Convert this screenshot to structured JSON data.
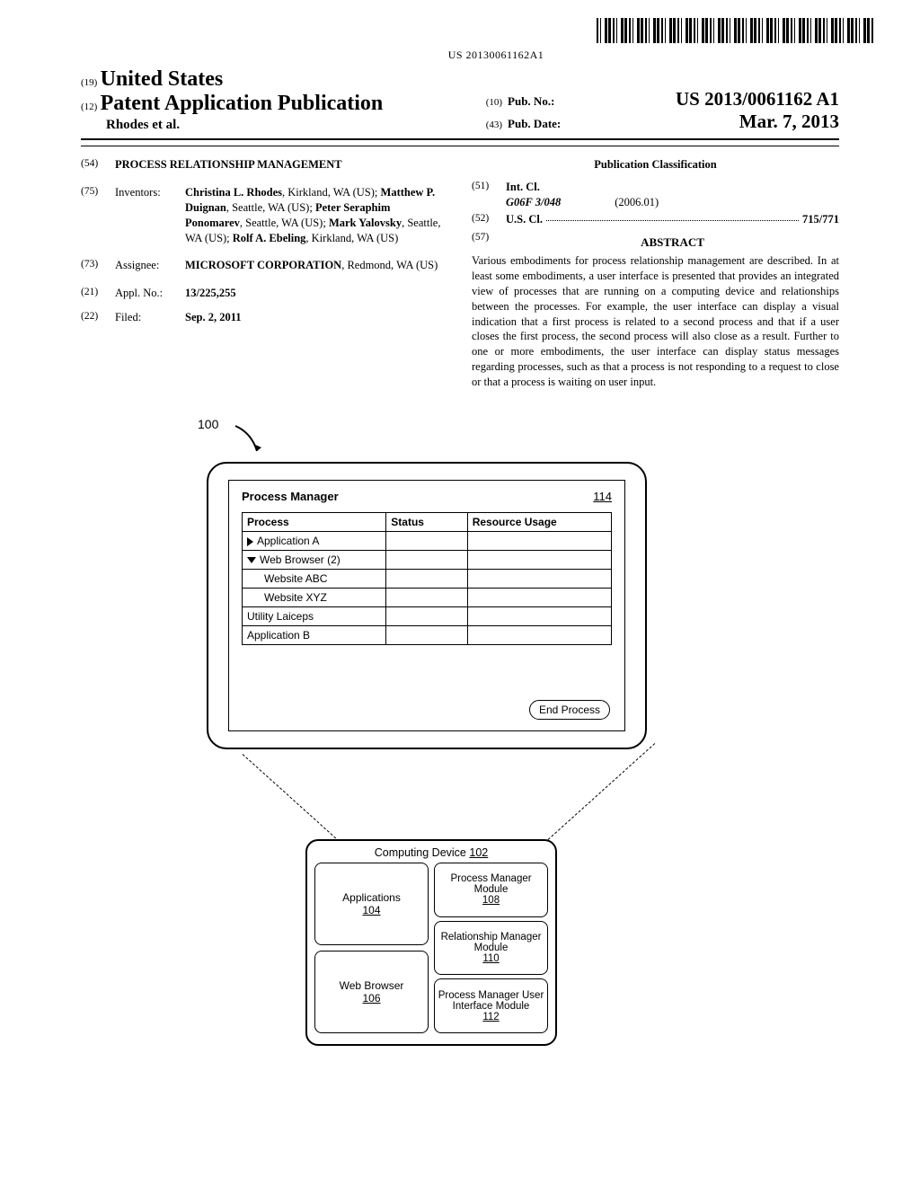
{
  "barcode_number": "US 20130061162A1",
  "header": {
    "num19": "(19)",
    "country": "United States",
    "num12": "(12)",
    "doc_type": "Patent Application Publication",
    "authors": "Rhodes et al.",
    "num10": "(10)",
    "pubno_label": "Pub. No.:",
    "pubno_value": "US 2013/0061162 A1",
    "num43": "(43)",
    "pubdate_label": "Pub. Date:",
    "pubdate_value": "Mar. 7, 2013"
  },
  "left_col": {
    "f54": {
      "num": "(54)",
      "text": "PROCESS RELATIONSHIP MANAGEMENT"
    },
    "f75": {
      "num": "(75)",
      "label": "Inventors:",
      "names": [
        {
          "bold": "Christina L. Rhodes",
          "rest": ", Kirkland, WA (US); "
        },
        {
          "bold": "Matthew P. Duignan",
          "rest": ", Seattle, WA (US); "
        },
        {
          "bold": "Peter Seraphim Ponomarev",
          "rest": ", Seattle, WA (US); "
        },
        {
          "bold": "Mark Yalovsky",
          "rest": ", Seattle, WA (US); "
        },
        {
          "bold": "Rolf A. Ebeling",
          "rest": ", Kirkland, WA (US)"
        }
      ]
    },
    "f73": {
      "num": "(73)",
      "label": "Assignee:",
      "name": "MICROSOFT CORPORATION",
      "rest": ", Redmond, WA (US)"
    },
    "f21": {
      "num": "(21)",
      "label": "Appl. No.:",
      "value": "13/225,255"
    },
    "f22": {
      "num": "(22)",
      "label": "Filed:",
      "value": "Sep. 2, 2011"
    }
  },
  "right_col": {
    "class_head": "Publication Classification",
    "f51": {
      "num": "(51)",
      "label": "Int. Cl.",
      "code": "G06F 3/048",
      "year": "(2006.01)"
    },
    "f52": {
      "num": "(52)",
      "label": "U.S. Cl.",
      "value": "715/771"
    },
    "f57": {
      "num": "(57)",
      "head": "ABSTRACT",
      "body": "Various embodiments for process relationship management are described. In at least some embodiments, a user interface is presented that provides an integrated view of processes that are running on a computing device and relationships between the processes. For example, the user interface can display a visual indication that a first process is related to a second process and that if a user closes the first process, the second process will also close as a result. Further to one or more embodiments, the user interface can display status messages regarding processes, such as that a process is not responding to a request to close or that a process is waiting on user input."
    }
  },
  "diagram": {
    "ref100": "100",
    "pm_window": {
      "title": "Process Manager",
      "ref": "114",
      "columns": [
        "Process",
        "Status",
        "Resource Usage"
      ],
      "rows": [
        {
          "icon": "right",
          "text": "Application A",
          "indent": 0
        },
        {
          "icon": "down",
          "text": "Web Browser (2)",
          "indent": 0
        },
        {
          "icon": "",
          "text": "Website ABC",
          "indent": 1
        },
        {
          "icon": "",
          "text": "Website XYZ",
          "indent": 1
        },
        {
          "icon": "",
          "text": "Utility Laiceps",
          "indent": 0
        },
        {
          "icon": "",
          "text": "Application B",
          "indent": 0
        }
      ],
      "end_btn": "End Process"
    },
    "cd": {
      "title": "Computing Device",
      "ref": "102",
      "apps": {
        "label": "Applications",
        "ref": "104"
      },
      "wb": {
        "label": "Web Browser",
        "ref": "106"
      },
      "pmm": {
        "label": "Process Manager Module",
        "ref": "108"
      },
      "rmm": {
        "label": "Relationship Manager Module",
        "ref": "110"
      },
      "pmui": {
        "label": "Process Manager User Interface Module",
        "ref": "112"
      }
    }
  }
}
